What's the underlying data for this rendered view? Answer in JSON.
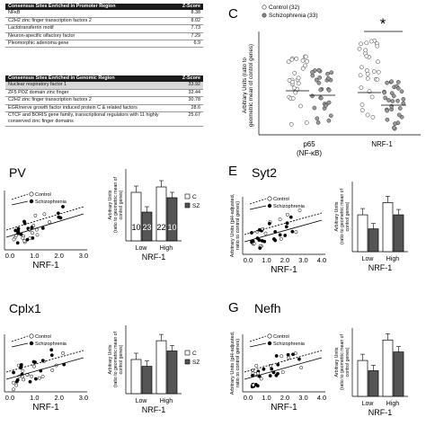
{
  "promoter_table": {
    "header": "Consensus Sites Enriched in Promoter Region",
    "zhdr": "Z-Score",
    "rows": [
      {
        "name": "NFκB",
        "z": "8.38"
      },
      {
        "name": "C2H2 zinc finger transcription factors 2",
        "z": "8.02"
      },
      {
        "name": "Lactotransferrin motif",
        "z": "7.73"
      },
      {
        "name": "Neuron-specific olfactory factor",
        "z": "7.29"
      },
      {
        "name": "Pleomorphic adenoma gene",
        "z": "6.9"
      }
    ]
  },
  "genomic_table": {
    "header": "Consensus Sites Enriched in Genomic Region",
    "zhdr": "Z-Score",
    "rows": [
      {
        "name": "Nuclear respiratory factor 1",
        "z": "33.92"
      },
      {
        "name": "ZF5 POZ domain zinc finger",
        "z": "32.44"
      },
      {
        "name": "C2H2 zinc finger transcription factors 2",
        "z": "30.78"
      },
      {
        "name": "EGR/nerve growth factor induced protein C & related factors",
        "z": "28.6"
      },
      {
        "name": "CTCF and BORIS gene family, transcriptional regulators with 11 highly conserved zinc finger domains",
        "z": "25.67"
      }
    ]
  },
  "panel_c": {
    "letter": "C",
    "legend_control": "Control (32)",
    "legend_sz": "Schizophrenia (33)",
    "ylabel1": "Arbitrary Units (ratio to",
    "ylabel2": "geometric mean of control genes)",
    "group1_line1": "p65",
    "group1_line2": "(NF-κB)",
    "group2": "NRF-1",
    "star": "*"
  },
  "panels": {
    "pv": {
      "gene": "PV",
      "legend_c": "Control",
      "legend_s": "Schizophrenia",
      "xlabel": "NRF-1",
      "xticks": [
        "0.0",
        "1.0",
        "2.0",
        "3.0"
      ],
      "bar_ylabel1": "Arbitrary Units",
      "bar_ylabel2": "(ratio to geometric mean of",
      "bar_ylabel3": "control genes)",
      "bar_xlabel": "NRF-1",
      "low": "Low",
      "high": "High",
      "leg_c": "C",
      "leg_sz": "SZ",
      "n1": "10",
      "n2": "23",
      "n3": "22",
      "n4": "10"
    },
    "syt2": {
      "letter": "E",
      "gene": "Syt2",
      "legend_c": "Control",
      "legend_s": "Schizophrenia",
      "xlabel": "NRF-1",
      "ylabel1": "Arbitrary Units (pH-adjusted,",
      "ylabel2": "ratio to control genes)",
      "xticks": [
        "0.0",
        "1.0",
        "2.0",
        "3.0",
        "4.0"
      ],
      "bar_ylabel1": "Arbitrary Units",
      "bar_ylabel2": "(ratio to geometric mean of",
      "bar_ylabel3": "control genes)",
      "bar_xlabel": "NRF-1",
      "low": "Low",
      "high": "High"
    },
    "cplx1": {
      "gene": "Cplx1",
      "legend_c": "Control",
      "legend_s": "Schizophrenia",
      "xlabel": "NRF-1",
      "xticks": [
        "0.0",
        "1.0",
        "2.0",
        "3.0"
      ],
      "bar_ylabel1": "Arbitrary Units",
      "bar_ylabel2": "(ratio to geometric mean of",
      "bar_ylabel3": "control genes)",
      "bar_xlabel": "NRF-1",
      "low": "Low",
      "high": "High",
      "leg_c": "C",
      "leg_sz": "SZ"
    },
    "nefh": {
      "letter": "G",
      "gene": "Nefh",
      "legend_c": "Control",
      "legend_s": "Schizophrenia",
      "xlabel": "NRF-1",
      "ylabel1": "Arbitrary Units (pH-adjusted,",
      "ylabel2": "ratio to control genes)",
      "xticks": [
        "0.0",
        "1.0",
        "2.0",
        "3.0",
        "4.0"
      ],
      "bar_ylabel1": "Arbitrary Units",
      "bar_ylabel2": "(ratio to geometric mean of",
      "bar_ylabel3": "control genes)",
      "bar_xlabel": "NRF-1",
      "low": "Low",
      "high": "High"
    }
  },
  "chart_data": [
    {
      "type": "scatter",
      "panel": "C",
      "groups": [
        "p65 (NF-κB)",
        "NRF-1"
      ],
      "series": [
        {
          "name": "Control (32)"
        },
        {
          "name": "Schizophrenia (33)"
        }
      ],
      "significance": "NRF-1 *"
    },
    {
      "type": "bar",
      "panel": "PV",
      "categories": [
        "Low",
        "High"
      ],
      "series": [
        {
          "name": "C",
          "values": [
            1.35,
            1.5
          ]
        },
        {
          "name": "SZ",
          "values": [
            0.8,
            1.2
          ]
        }
      ]
    },
    {
      "type": "bar",
      "panel": "Syt2",
      "categories": [
        "Low",
        "High"
      ],
      "series": [
        {
          "name": "C",
          "values": [
            1.05,
            1.4
          ]
        },
        {
          "name": "SZ",
          "values": [
            0.65,
            1.05
          ]
        }
      ]
    },
    {
      "type": "bar",
      "panel": "Cplx1",
      "categories": [
        "Low",
        "High"
      ],
      "series": [
        {
          "name": "C",
          "values": [
            1.0,
            1.55
          ]
        },
        {
          "name": "SZ",
          "values": [
            0.8,
            1.25
          ]
        }
      ]
    },
    {
      "type": "bar",
      "panel": "Nefh",
      "categories": [
        "Low",
        "High"
      ],
      "series": [
        {
          "name": "C",
          "values": [
            1.05,
            1.65
          ]
        },
        {
          "name": "SZ",
          "values": [
            0.75,
            1.3
          ]
        }
      ]
    }
  ]
}
